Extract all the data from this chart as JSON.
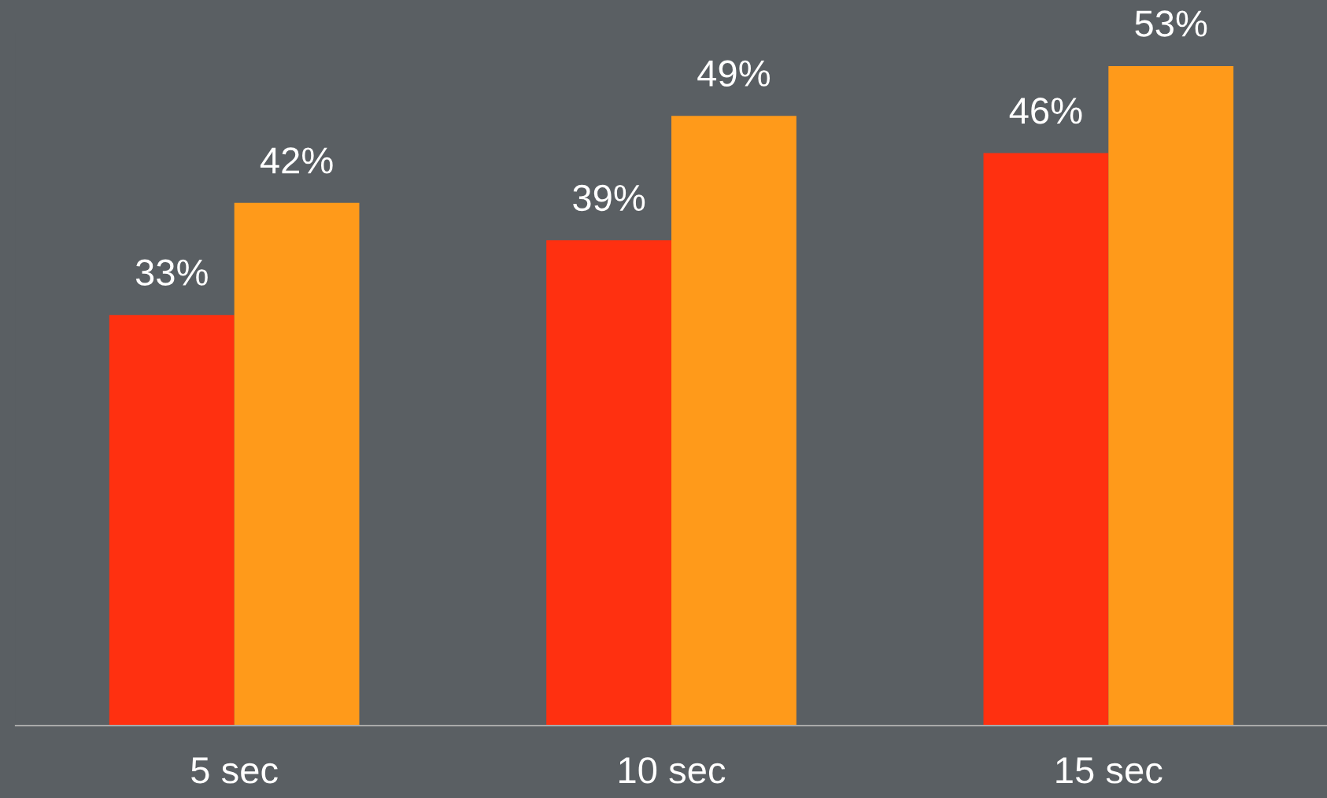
{
  "chart_data": {
    "type": "bar",
    "categories": [
      "5 sec",
      "10 sec",
      "15 sec"
    ],
    "series": [
      {
        "color": "#ff3010",
        "values": [
          33,
          39,
          46
        ],
        "value_labels": [
          "33%",
          "39%",
          "46%"
        ]
      },
      {
        "color": "#ff9a1a",
        "values": [
          42,
          49,
          53
        ],
        "value_labels": [
          "42%",
          "49%",
          "53%"
        ]
      }
    ],
    "grid": false,
    "legend": false
  }
}
